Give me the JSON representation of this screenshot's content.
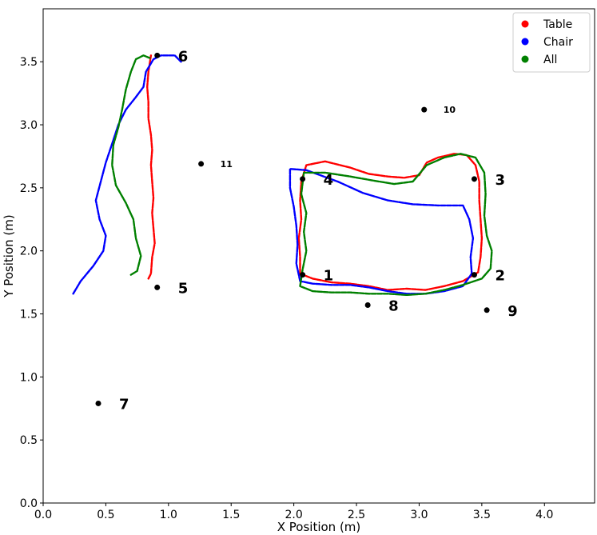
{
  "chart_data": {
    "type": "scatter",
    "title": "",
    "xlabel": "X Position (m)",
    "ylabel": "Y Position (m)",
    "xlim": [
      0.0,
      4.4
    ],
    "ylim": [
      0.0,
      3.92
    ],
    "xticks": [
      "0.0",
      "0.5",
      "1.0",
      "1.5",
      "2.0",
      "2.5",
      "3.0",
      "3.5",
      "4.0"
    ],
    "yticks": [
      "0.0",
      "0.5",
      "1.0",
      "1.5",
      "2.0",
      "2.5",
      "3.0",
      "3.5"
    ],
    "grid": false,
    "legend": "top-right",
    "series": [
      {
        "name": "Table",
        "color": "#ff0000",
        "paths": [
          [
            [
              0.84,
              1.78
            ],
            [
              0.86,
              1.82
            ],
            [
              0.87,
              1.95
            ],
            [
              0.89,
              2.06
            ],
            [
              0.88,
              2.18
            ],
            [
              0.87,
              2.3
            ],
            [
              0.88,
              2.42
            ],
            [
              0.87,
              2.55
            ],
            [
              0.86,
              2.68
            ],
            [
              0.87,
              2.8
            ],
            [
              0.86,
              2.92
            ],
            [
              0.84,
              3.05
            ],
            [
              0.84,
              3.18
            ],
            [
              0.83,
              3.3
            ],
            [
              0.84,
              3.42
            ],
            [
              0.86,
              3.55
            ]
          ],
          [
            [
              2.05,
              1.82
            ],
            [
              2.05,
              1.95
            ],
            [
              2.04,
              2.1
            ],
            [
              2.06,
              2.25
            ],
            [
              2.05,
              2.4
            ],
            [
              2.06,
              2.55
            ],
            [
              2.1,
              2.68
            ],
            [
              2.25,
              2.71
            ],
            [
              2.45,
              2.66
            ],
            [
              2.6,
              2.61
            ],
            [
              2.75,
              2.59
            ],
            [
              2.88,
              2.58
            ],
            [
              3.0,
              2.6
            ],
            [
              3.06,
              2.7
            ],
            [
              3.15,
              2.74
            ],
            [
              3.28,
              2.77
            ],
            [
              3.38,
              2.76
            ],
            [
              3.45,
              2.68
            ],
            [
              3.48,
              2.55
            ],
            [
              3.48,
              2.4
            ],
            [
              3.49,
              2.25
            ],
            [
              3.5,
              2.1
            ],
            [
              3.49,
              1.95
            ],
            [
              3.47,
              1.83
            ],
            [
              3.35,
              1.76
            ],
            [
              3.2,
              1.72
            ],
            [
              3.05,
              1.69
            ],
            [
              2.9,
              1.7
            ],
            [
              2.75,
              1.69
            ],
            [
              2.6,
              1.72
            ],
            [
              2.45,
              1.74
            ],
            [
              2.3,
              1.75
            ],
            [
              2.15,
              1.78
            ],
            [
              2.05,
              1.82
            ]
          ]
        ]
      },
      {
        "name": "Chair",
        "color": "#0000ff",
        "paths": [
          [
            [
              0.24,
              1.66
            ],
            [
              0.3,
              1.76
            ],
            [
              0.4,
              1.88
            ],
            [
              0.48,
              2.0
            ],
            [
              0.5,
              2.12
            ],
            [
              0.45,
              2.25
            ],
            [
              0.42,
              2.4
            ],
            [
              0.46,
              2.55
            ],
            [
              0.5,
              2.7
            ],
            [
              0.55,
              2.85
            ],
            [
              0.6,
              3.0
            ],
            [
              0.66,
              3.12
            ],
            [
              0.74,
              3.22
            ],
            [
              0.8,
              3.3
            ],
            [
              0.82,
              3.42
            ],
            [
              0.88,
              3.52
            ],
            [
              0.94,
              3.55
            ],
            [
              1.05,
              3.55
            ],
            [
              1.1,
              3.5
            ]
          ],
          [
            [
              2.05,
              1.76
            ],
            [
              2.02,
              1.9
            ],
            [
              2.03,
              2.05
            ],
            [
              2.02,
              2.2
            ],
            [
              2.0,
              2.35
            ],
            [
              1.97,
              2.5
            ],
            [
              1.97,
              2.65
            ],
            [
              2.1,
              2.64
            ],
            [
              2.35,
              2.55
            ],
            [
              2.55,
              2.46
            ],
            [
              2.75,
              2.4
            ],
            [
              2.95,
              2.37
            ],
            [
              3.15,
              2.36
            ],
            [
              3.35,
              2.36
            ],
            [
              3.4,
              2.25
            ],
            [
              3.43,
              2.1
            ],
            [
              3.41,
              1.95
            ],
            [
              3.42,
              1.82
            ],
            [
              3.35,
              1.72
            ],
            [
              3.2,
              1.68
            ],
            [
              3.05,
              1.66
            ],
            [
              2.9,
              1.66
            ],
            [
              2.75,
              1.68
            ],
            [
              2.6,
              1.71
            ],
            [
              2.45,
              1.73
            ],
            [
              2.3,
              1.73
            ],
            [
              2.15,
              1.74
            ],
            [
              2.05,
              1.76
            ]
          ]
        ]
      },
      {
        "name": "All",
        "color": "#008000",
        "paths": [
          [
            [
              0.7,
              1.81
            ],
            [
              0.75,
              1.84
            ],
            [
              0.78,
              1.96
            ],
            [
              0.74,
              2.1
            ],
            [
              0.72,
              2.25
            ],
            [
              0.66,
              2.38
            ],
            [
              0.58,
              2.52
            ],
            [
              0.55,
              2.68
            ],
            [
              0.56,
              2.84
            ],
            [
              0.6,
              2.98
            ],
            [
              0.63,
              3.12
            ],
            [
              0.66,
              3.28
            ],
            [
              0.7,
              3.42
            ],
            [
              0.74,
              3.52
            ],
            [
              0.8,
              3.55
            ],
            [
              0.85,
              3.53
            ]
          ],
          [
            [
              2.05,
              1.72
            ],
            [
              2.07,
              1.85
            ],
            [
              2.1,
              2.0
            ],
            [
              2.08,
              2.15
            ],
            [
              2.1,
              2.3
            ],
            [
              2.06,
              2.45
            ],
            [
              2.08,
              2.62
            ],
            [
              2.25,
              2.62
            ],
            [
              2.45,
              2.59
            ],
            [
              2.62,
              2.56
            ],
            [
              2.8,
              2.53
            ],
            [
              2.95,
              2.55
            ],
            [
              3.06,
              2.68
            ],
            [
              3.2,
              2.74
            ],
            [
              3.33,
              2.77
            ],
            [
              3.45,
              2.74
            ],
            [
              3.52,
              2.62
            ],
            [
              3.53,
              2.45
            ],
            [
              3.52,
              2.28
            ],
            [
              3.54,
              2.12
            ],
            [
              3.58,
              2.0
            ],
            [
              3.57,
              1.86
            ],
            [
              3.5,
              1.78
            ],
            [
              3.35,
              1.73
            ],
            [
              3.2,
              1.69
            ],
            [
              3.05,
              1.66
            ],
            [
              2.9,
              1.65
            ],
            [
              2.75,
              1.66
            ],
            [
              2.6,
              1.66
            ],
            [
              2.45,
              1.67
            ],
            [
              2.3,
              1.67
            ],
            [
              2.15,
              1.68
            ],
            [
              2.05,
              1.72
            ]
          ]
        ]
      }
    ],
    "landmarks": [
      {
        "label": "1",
        "x": 2.07,
        "y": 1.81,
        "size": "big"
      },
      {
        "label": "2",
        "x": 3.44,
        "y": 1.81,
        "size": "big"
      },
      {
        "label": "3",
        "x": 3.44,
        "y": 2.57,
        "size": "big"
      },
      {
        "label": "4",
        "x": 2.07,
        "y": 2.57,
        "size": "big"
      },
      {
        "label": "5",
        "x": 0.91,
        "y": 1.71,
        "size": "big"
      },
      {
        "label": "6",
        "x": 0.91,
        "y": 3.55,
        "size": "big"
      },
      {
        "label": "7",
        "x": 0.44,
        "y": 0.79,
        "size": "big"
      },
      {
        "label": "8",
        "x": 2.59,
        "y": 1.57,
        "size": "big"
      },
      {
        "label": "9",
        "x": 3.54,
        "y": 1.53,
        "size": "big"
      },
      {
        "label": "10",
        "x": 3.04,
        "y": 3.12,
        "size": "small"
      },
      {
        "label": "11",
        "x": 1.26,
        "y": 2.69,
        "size": "small"
      }
    ]
  }
}
